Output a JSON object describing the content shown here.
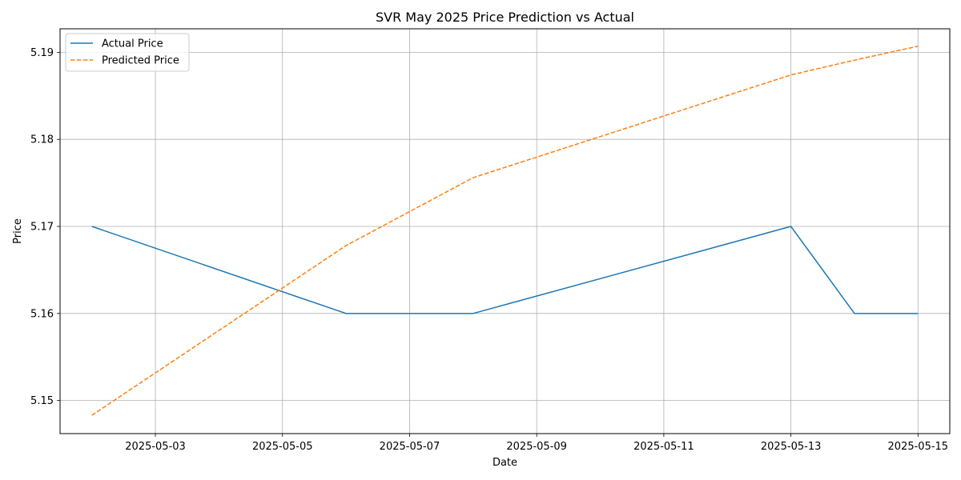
{
  "chart_data": {
    "type": "line",
    "title": "SVR May 2025 Price Prediction vs Actual",
    "xlabel": "Date",
    "ylabel": "Price",
    "x_range": [
      "2025-05-01T12:00",
      "2025-05-15T12:00"
    ],
    "ylim": [
      5.1462,
      5.1927
    ],
    "x_ticks": [
      "2025-05-03",
      "2025-05-05",
      "2025-05-07",
      "2025-05-09",
      "2025-05-11",
      "2025-05-13",
      "2025-05-15"
    ],
    "y_ticks": [
      "5.15",
      "5.16",
      "5.17",
      "5.18",
      "5.19"
    ],
    "grid": true,
    "legend_position": "top-left",
    "series": [
      {
        "name": "Actual Price",
        "color": "#1f77b4",
        "style": "solid",
        "points": [
          {
            "x": "2025-05-02",
            "y": 5.17
          },
          {
            "x": "2025-05-06",
            "y": 5.16
          },
          {
            "x": "2025-05-08",
            "y": 5.16
          },
          {
            "x": "2025-05-13",
            "y": 5.17
          },
          {
            "x": "2025-05-14",
            "y": 5.16
          },
          {
            "x": "2025-05-15",
            "y": 5.16
          }
        ]
      },
      {
        "name": "Predicted Price",
        "color": "#ff7f0e",
        "style": "dashed",
        "points": [
          {
            "x": "2025-05-02",
            "y": 5.1483
          },
          {
            "x": "2025-05-06",
            "y": 5.1678
          },
          {
            "x": "2025-05-08",
            "y": 5.1756
          },
          {
            "x": "2025-05-13",
            "y": 5.1874
          },
          {
            "x": "2025-05-14",
            "y": 5.1891
          },
          {
            "x": "2025-05-15",
            "y": 5.1907
          }
        ]
      }
    ]
  }
}
